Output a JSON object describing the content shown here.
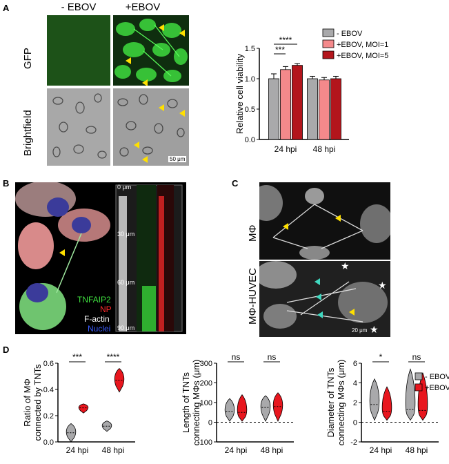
{
  "panels": {
    "a": "A",
    "b": "B",
    "c": "C",
    "d": "D"
  },
  "panel_a": {
    "col_minus": "- EBOV",
    "col_plus": "+EBOV",
    "row_gfp": "GFP",
    "row_bf": "Brightfield",
    "scale": "50 μm"
  },
  "panel_b": {
    "stain_tnfaip2": "TNFAIP2",
    "stain_np": "NP",
    "stain_factin": "F-actin",
    "stain_nuclei": "Nuclei",
    "depth_0": "0 μm",
    "depth_30": "30 μm",
    "depth_60": "60 μm",
    "depth_90": "90 μm"
  },
  "panel_c": {
    "row_top": "MΦ",
    "row_bottom": "MΦ-HUVEC",
    "scale": "20 μm"
  },
  "colors": {
    "minus": "#a9a9ab",
    "moi1": "#f4898b",
    "moi5": "#b3151c",
    "plus_d": "#e8161e"
  },
  "chart_data": [
    {
      "type": "bar",
      "ylabel": "Relative cell viability",
      "ylim": [
        0.0,
        1.5
      ],
      "yticks": [
        "0.0",
        "0.5",
        "1.0",
        "1.5"
      ],
      "categories": [
        "24 hpi",
        "48 hpi"
      ],
      "series": [
        {
          "name": "- EBOV",
          "values": [
            1.0,
            1.0
          ],
          "errors": [
            0.08,
            0.04
          ]
        },
        {
          "name": "+EBOV, MOI=1",
          "values": [
            1.15,
            0.98
          ],
          "errors": [
            0.05,
            0.04
          ]
        },
        {
          "name": "+EBOV, MOI=5",
          "values": [
            1.22,
            1.0
          ],
          "errors": [
            0.03,
            0.04
          ]
        }
      ],
      "significance": [
        "***",
        "****"
      ],
      "legend_position": "top-right"
    },
    {
      "type": "violin",
      "ylabel_line1": "Ratio of MΦ",
      "ylabel_line2": "connected by TNTs",
      "ylim": [
        0.0,
        0.6
      ],
      "yticks": [
        "0.0",
        "0.2",
        "0.4",
        "0.6"
      ],
      "categories": [
        "24 hpi",
        "48 hpi"
      ],
      "series": [
        {
          "name": "- EBOV",
          "medians": [
            0.07,
            0.12
          ],
          "ranges": [
            [
              0.0,
              0.14
            ],
            [
              0.08,
              0.16
            ]
          ]
        },
        {
          "name": "+EBOV",
          "medians": [
            0.26,
            0.47
          ],
          "ranges": [
            [
              0.22,
              0.29
            ],
            [
              0.38,
              0.56
            ]
          ]
        }
      ],
      "significance": [
        "***",
        "****"
      ]
    },
    {
      "type": "violin",
      "ylabel_line1": "Length of TNTs",
      "ylabel_line2": "connecting MΦs (μm)",
      "ylim": [
        -100,
        300
      ],
      "yticks": [
        "-100",
        "0",
        "100",
        "200",
        "300"
      ],
      "categories": [
        "24 hpi",
        "48 hpi"
      ],
      "series": [
        {
          "name": "- EBOV",
          "medians": [
            55,
            75
          ],
          "ranges": [
            [
              5,
              120
            ],
            [
              5,
              135
            ]
          ]
        },
        {
          "name": "+EBOV",
          "medians": [
            50,
            80
          ],
          "ranges": [
            [
              5,
              140
            ],
            [
              5,
              150
            ]
          ]
        }
      ],
      "significance": [
        "ns",
        "ns"
      ]
    },
    {
      "type": "violin",
      "ylabel_line1": "Diameter of TNTs",
      "ylabel_line2": "connecting MΦs (μm)",
      "ylim": [
        -2,
        6
      ],
      "yticks": [
        "-2",
        "0",
        "2",
        "4",
        "6"
      ],
      "categories": [
        "24 hpi",
        "48 hpi"
      ],
      "series": [
        {
          "name": "- EBOV",
          "medians": [
            1.8,
            1.3
          ],
          "ranges": [
            [
              0.2,
              4.4
            ],
            [
              0.2,
              5.4
            ]
          ]
        },
        {
          "name": "+EBOV",
          "medians": [
            1.1,
            1.2
          ],
          "ranges": [
            [
              0.2,
              3.6
            ],
            [
              0.2,
              5.0
            ]
          ]
        }
      ],
      "significance": [
        "*",
        "ns"
      ],
      "legend": [
        "- EBOV",
        "+EBOV"
      ]
    }
  ]
}
